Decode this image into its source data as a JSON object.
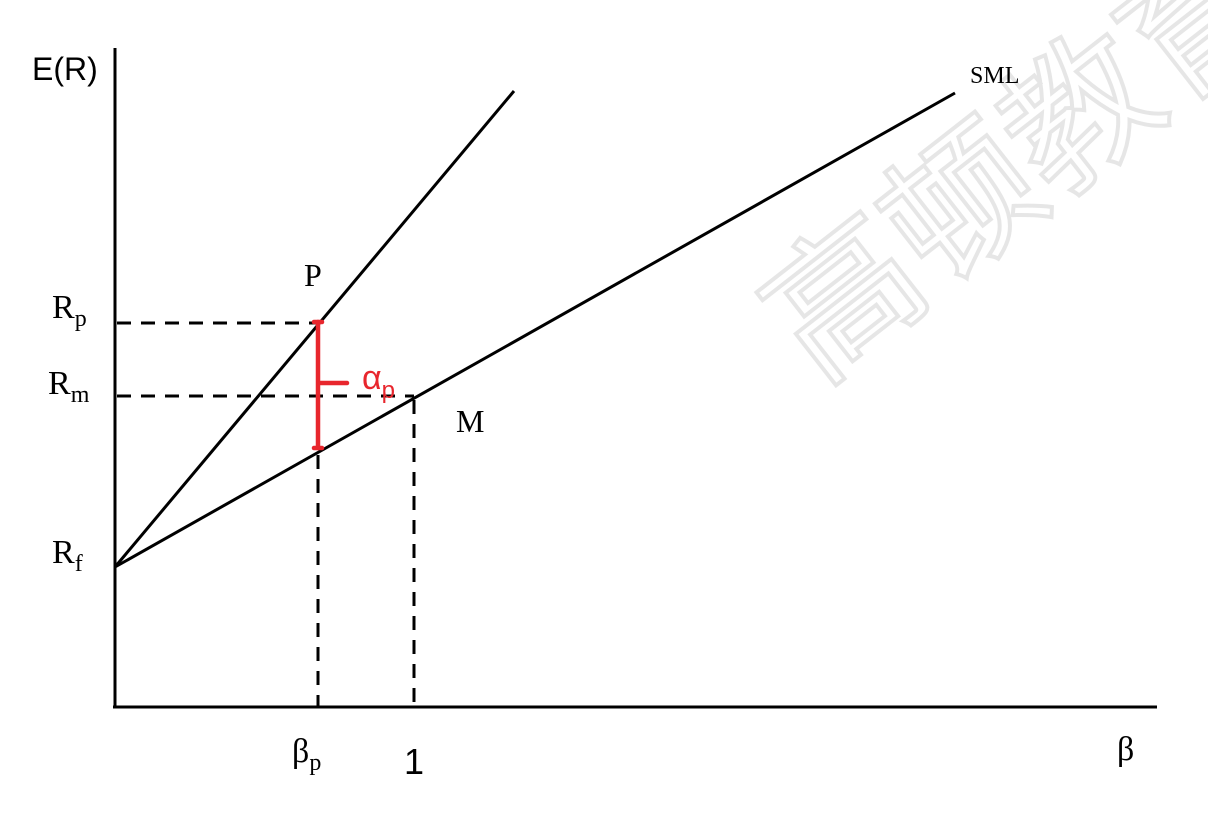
{
  "diagram": {
    "y_axis_label": "E(R)",
    "x_axis_label": "β",
    "sml_label": "SML",
    "point_p_label": "P",
    "point_m_label": "M",
    "rp": {
      "base": "R",
      "sub": "p"
    },
    "rm": {
      "base": "R",
      "sub": "m"
    },
    "rf": {
      "base": "R",
      "sub": "f"
    },
    "beta_p": {
      "base": "β",
      "sub": "p"
    },
    "beta_one": "1",
    "alpha_p": {
      "base": "α",
      "sub": "p"
    },
    "watermark": "高顿教育",
    "colors": {
      "alpha": "#e8262d",
      "line": "#000000",
      "watermark": "#d9d9d9"
    }
  }
}
